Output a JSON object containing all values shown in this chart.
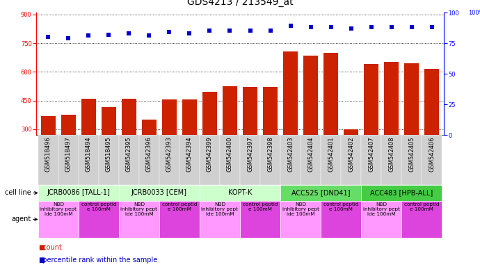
{
  "title": "GDS4213 / 213549_at",
  "samples": [
    "GSM518496",
    "GSM518497",
    "GSM518494",
    "GSM518495",
    "GSM542395",
    "GSM542396",
    "GSM542393",
    "GSM542394",
    "GSM542399",
    "GSM542400",
    "GSM542397",
    "GSM542398",
    "GSM542403",
    "GSM542404",
    "GSM542401",
    "GSM542402",
    "GSM542407",
    "GSM542408",
    "GSM542405",
    "GSM542406"
  ],
  "counts": [
    370,
    375,
    460,
    415,
    460,
    350,
    455,
    455,
    495,
    525,
    520,
    520,
    705,
    685,
    700,
    300,
    640,
    650,
    645,
    615
  ],
  "percentile_ranks": [
    80,
    79,
    81,
    82,
    83,
    81,
    84,
    83,
    85,
    85,
    85,
    85,
    89,
    88,
    88,
    87,
    88,
    88,
    88,
    88
  ],
  "cell_lines": [
    {
      "name": "JCRB0086 [TALL-1]",
      "start": 0,
      "end": 4,
      "color": "#ccffcc"
    },
    {
      "name": "JCRB0033 [CEM]",
      "start": 4,
      "end": 8,
      "color": "#ccffcc"
    },
    {
      "name": "KOPT-K",
      "start": 8,
      "end": 12,
      "color": "#ccffcc"
    },
    {
      "name": "ACC525 [DND41]",
      "start": 12,
      "end": 16,
      "color": "#66dd66"
    },
    {
      "name": "ACC483 [HPB-ALL]",
      "start": 16,
      "end": 20,
      "color": "#44cc44"
    }
  ],
  "agent_pattern": [
    {
      "label": "NBD\ninhibitory pept\nide 100mM",
      "color": "#ff99ff"
    },
    {
      "label": "control peptid\ne 100mM",
      "color": "#dd44dd"
    }
  ],
  "ylim_left": [
    270,
    910
  ],
  "yticks_left": [
    300,
    450,
    600,
    750,
    900
  ],
  "ylim_right": [
    0,
    100
  ],
  "yticks_right": [
    0,
    25,
    50,
    75,
    100
  ],
  "bar_color": "#cc2200",
  "dot_color": "#0000cc",
  "background_color": "#ffffff",
  "title_fontsize": 10,
  "tick_fontsize": 6,
  "label_fontsize": 7,
  "legend_fontsize": 7,
  "cell_line_label": "cell line",
  "agent_label": "agent",
  "legend_count": "count",
  "legend_percentile": "percentile rank within the sample"
}
